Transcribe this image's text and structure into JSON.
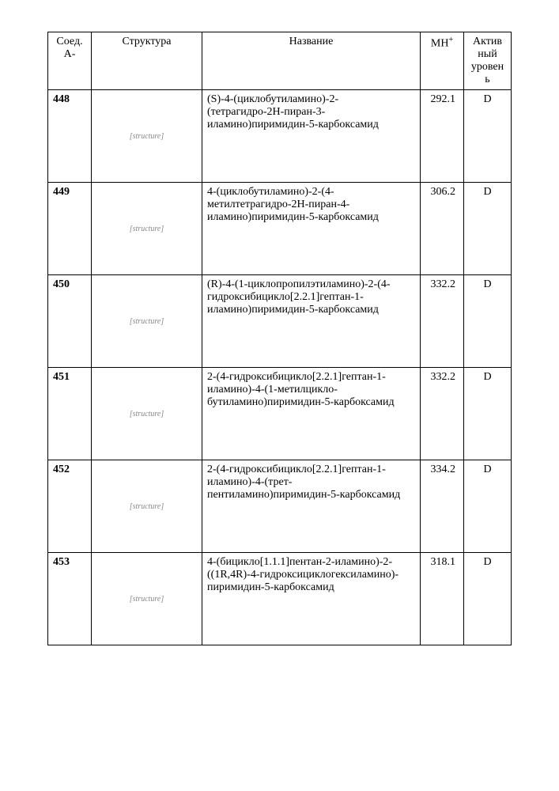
{
  "table": {
    "headers": {
      "id": "Соед. А-",
      "struct": "Структура",
      "name": "Название",
      "mh": "MH",
      "mh_sup": "+",
      "active": "Актив ный уровен ь"
    },
    "rows": [
      {
        "id": "448",
        "struct_alt": "structure",
        "name": "(S)-4-(циклобутиламино)-2-(тетрагидро-2H-пиран-3-иламино)пиримидин-5-карбоксамид",
        "mh": "292.1",
        "active": "D"
      },
      {
        "id": "449",
        "struct_alt": "structure",
        "name": "4-(циклобутиламино)-2-(4-метилтетрагидро-2H-пиран-4-иламино)пиримидин-5-карбоксамид",
        "mh": "306.2",
        "active": "D"
      },
      {
        "id": "450",
        "struct_alt": "structure",
        "name": "(R)-4-(1-циклопропилэтиламино)-2-(4-гидроксибицикло[2.2.1]гептан-1-иламино)пиримидин-5-карбоксамид",
        "mh": "332.2",
        "active": "D"
      },
      {
        "id": "451",
        "struct_alt": "structure",
        "name": "2-(4-гидроксибицикло[2.2.1]гептан-1-иламино)-4-(1-метилцикло-бутиламино)пиримидин-5-карбоксамид",
        "mh": "332.2",
        "active": "D"
      },
      {
        "id": "452",
        "struct_alt": "structure",
        "name": "2-(4-гидроксибицикло[2.2.1]гептан-1-иламино)-4-(трет-пентиламино)пиримидин-5-карбоксамид",
        "mh": "334.2",
        "active": "D"
      },
      {
        "id": "453",
        "struct_alt": "structure",
        "name": "4-(бицикло[1.1.1]пентан-2-иламино)-2-((1R,4R)-4-гидроксициклогексиламино)-пиримидин-5-карбоксамид",
        "mh": "318.1",
        "active": "D"
      }
    ]
  }
}
